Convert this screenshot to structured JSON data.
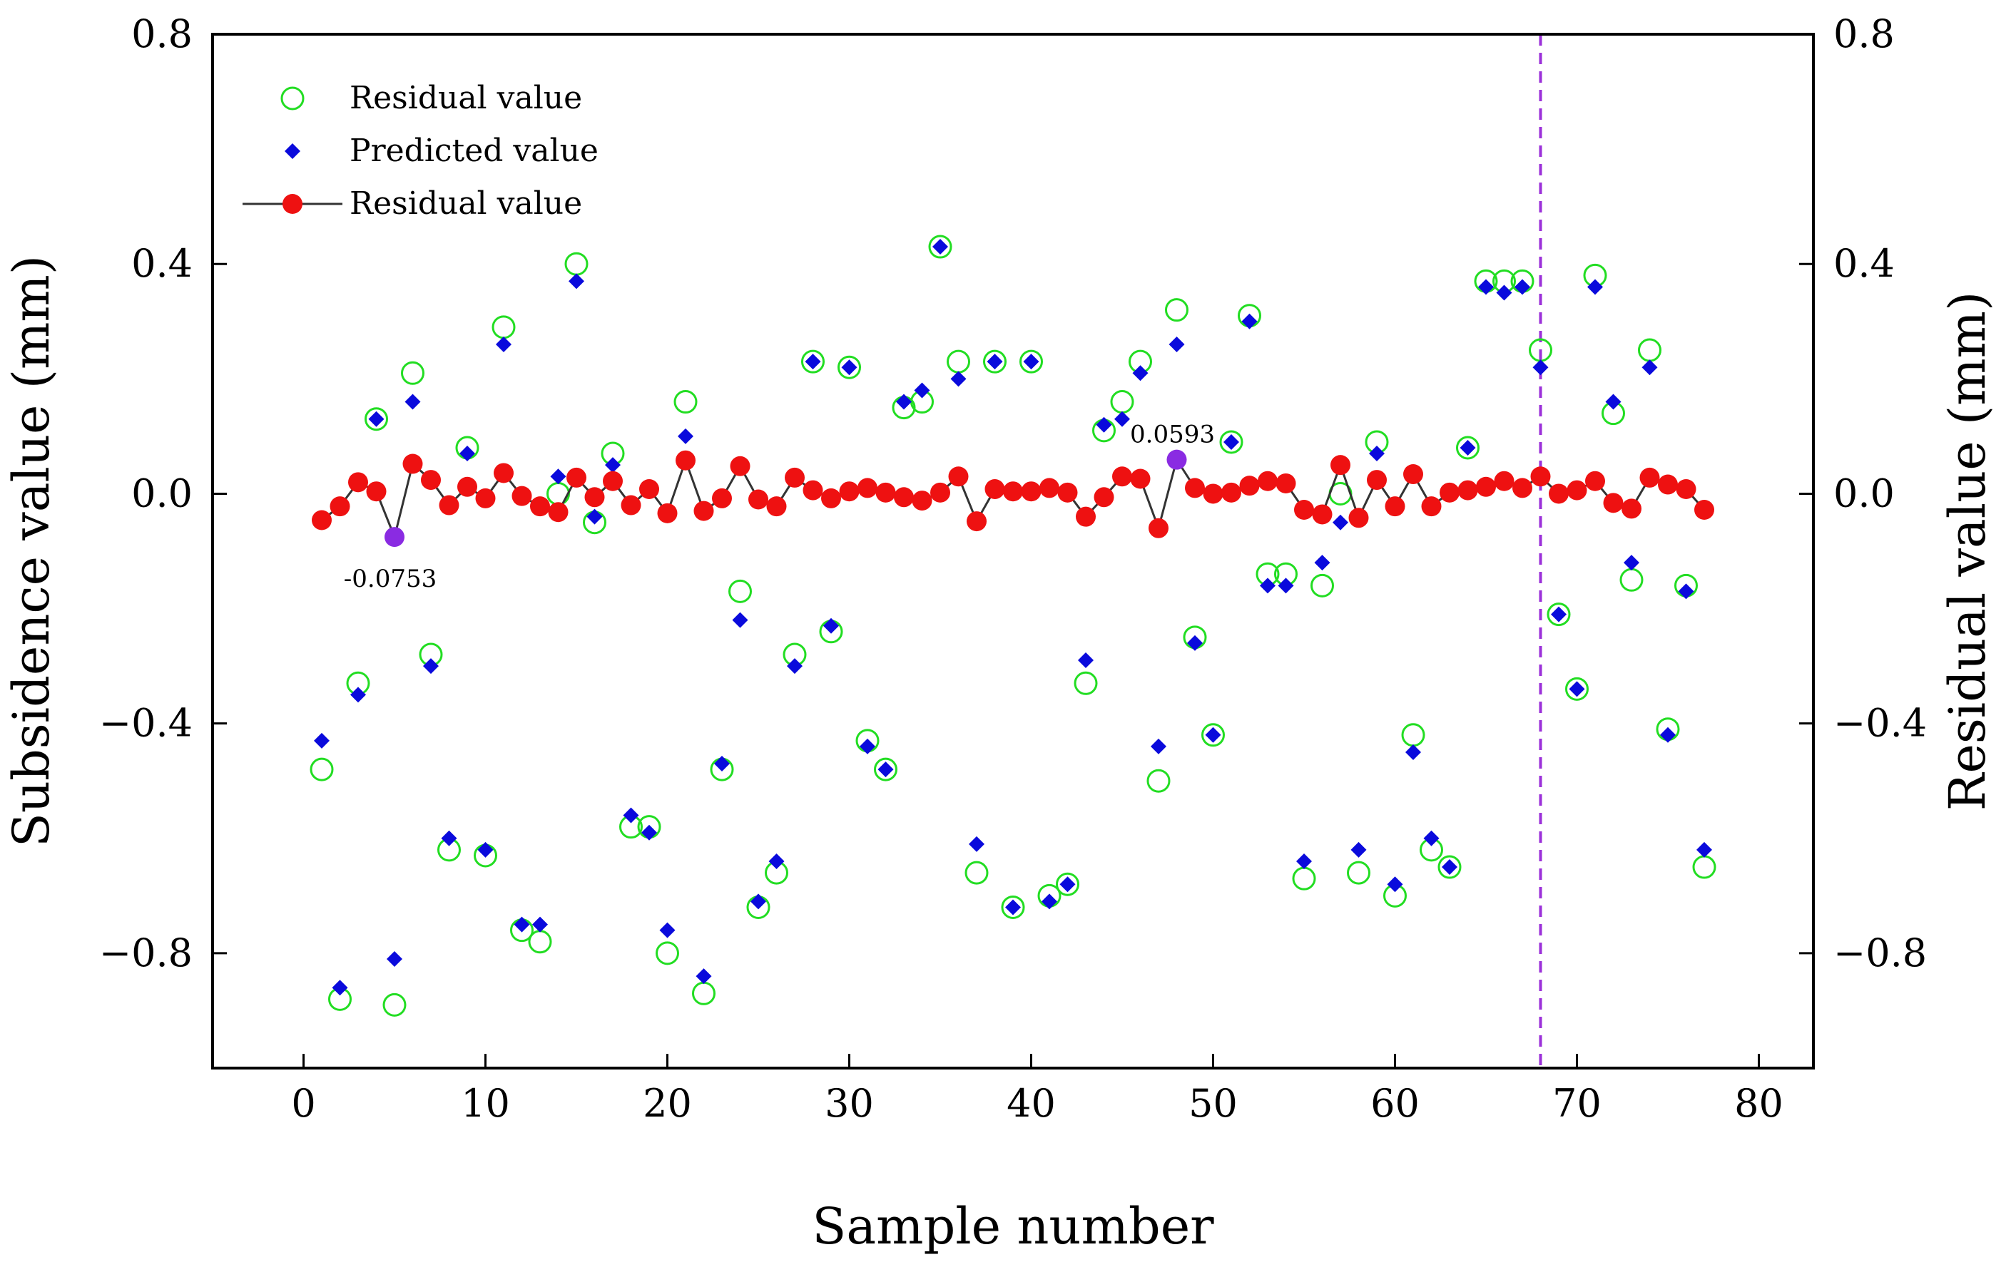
{
  "chart_data": {
    "type": "scatter",
    "xlabel": "Sample number",
    "ylabel": "Subsidence value (mm)",
    "y2label": "Residual value (mm)",
    "xlim": [
      -5,
      83
    ],
    "ylim": [
      -1.0,
      0.8
    ],
    "y2lim": [
      -1.0,
      0.8
    ],
    "xticks": [
      0,
      10,
      20,
      30,
      40,
      50,
      60,
      70,
      80
    ],
    "xtick_labels": [
      "0",
      "10",
      "20",
      "30",
      "40",
      "50",
      "60",
      "70",
      "80"
    ],
    "yticks": [
      0.8,
      0.4,
      0.0,
      -0.4,
      -0.8
    ],
    "ytick_labels": [
      "0.8",
      "0.4",
      "0.0",
      "−0.4",
      "−0.8"
    ],
    "y2ticks": [
      0.8,
      0.4,
      0.0,
      -0.4,
      -0.8
    ],
    "y2tick_labels": [
      "0.8",
      "0.4",
      "0.0",
      "−0.4",
      "−0.8"
    ],
    "legend_position": "top-left",
    "legend": [
      {
        "label": "Residual value",
        "marker": "open-circle",
        "color": "#22dd22"
      },
      {
        "label": "Predicted value",
        "marker": "diamond",
        "color": "#0a0adc"
      },
      {
        "label": "Residual value",
        "marker": "line-dot",
        "color": "#ee1111",
        "line_color": "#333333"
      }
    ],
    "split_line": {
      "x": 68,
      "color": "#9b30d9"
    },
    "highlight_color": "#8a2be2",
    "annotations": [
      {
        "x": 5,
        "y": -0.0753,
        "text": "-0.0753",
        "placement": "below"
      },
      {
        "x": 48,
        "y": 0.0593,
        "text": "0.0593",
        "placement": "above"
      }
    ],
    "series": [
      {
        "name": "Residual value",
        "kind": "open-circle",
        "color": "#22dd22",
        "x": [
          1,
          2,
          3,
          4,
          5,
          6,
          7,
          8,
          9,
          10,
          11,
          12,
          13,
          14,
          15,
          16,
          17,
          18,
          19,
          20,
          21,
          22,
          23,
          24,
          25,
          26,
          27,
          28,
          29,
          30,
          31,
          32,
          33,
          34,
          35,
          36,
          37,
          38,
          39,
          40,
          41,
          42,
          43,
          44,
          45,
          46,
          47,
          48,
          49,
          50,
          51,
          52,
          53,
          54,
          55,
          56,
          57,
          58,
          59,
          60,
          61,
          62,
          63,
          64,
          65,
          66,
          67,
          68,
          69,
          70,
          71,
          72,
          73,
          74,
          75,
          76,
          77
        ],
        "values": [
          -0.48,
          -0.88,
          -0.33,
          0.13,
          -0.89,
          0.21,
          -0.28,
          -0.62,
          0.08,
          -0.63,
          0.29,
          -0.76,
          -0.78,
          0.0,
          0.4,
          -0.05,
          0.07,
          -0.58,
          -0.58,
          -0.8,
          0.16,
          -0.87,
          -0.48,
          -0.17,
          -0.72,
          -0.66,
          -0.28,
          0.23,
          -0.24,
          0.22,
          -0.43,
          -0.48,
          0.15,
          0.16,
          0.43,
          0.23,
          -0.66,
          0.23,
          -0.72,
          0.23,
          -0.7,
          -0.68,
          -0.33,
          0.11,
          0.16,
          0.23,
          -0.5,
          0.32,
          -0.25,
          -0.42,
          0.09,
          0.31,
          -0.14,
          -0.14,
          -0.67,
          -0.16,
          0.0,
          -0.66,
          0.09,
          -0.7,
          -0.42,
          -0.62,
          -0.65,
          0.08,
          0.37,
          0.37,
          0.37,
          0.25,
          -0.21,
          -0.34,
          0.38,
          0.14,
          -0.15,
          0.25,
          -0.41,
          -0.16,
          -0.65
        ]
      },
      {
        "name": "Predicted value",
        "kind": "diamond",
        "color": "#0a0adc",
        "x": [
          1,
          2,
          3,
          4,
          5,
          6,
          7,
          8,
          9,
          10,
          11,
          12,
          13,
          14,
          15,
          16,
          17,
          18,
          19,
          20,
          21,
          22,
          23,
          24,
          25,
          26,
          27,
          28,
          29,
          30,
          31,
          32,
          33,
          34,
          35,
          36,
          37,
          38,
          39,
          40,
          41,
          42,
          43,
          44,
          45,
          46,
          47,
          48,
          49,
          50,
          51,
          52,
          53,
          54,
          55,
          56,
          57,
          58,
          59,
          60,
          61,
          62,
          63,
          64,
          65,
          66,
          67,
          68,
          69,
          70,
          71,
          72,
          73,
          74,
          75,
          76,
          77
        ],
        "values": [
          -0.43,
          -0.86,
          -0.35,
          0.13,
          -0.81,
          0.16,
          -0.3,
          -0.6,
          0.07,
          -0.62,
          0.26,
          -0.75,
          -0.75,
          0.03,
          0.37,
          -0.04,
          0.05,
          -0.56,
          -0.59,
          -0.76,
          0.1,
          -0.84,
          -0.47,
          -0.22,
          -0.71,
          -0.64,
          -0.3,
          0.23,
          -0.23,
          0.22,
          -0.44,
          -0.48,
          0.16,
          0.18,
          0.43,
          0.2,
          -0.61,
          0.23,
          -0.72,
          0.23,
          -0.71,
          -0.68,
          -0.29,
          0.12,
          0.13,
          0.21,
          -0.44,
          0.26,
          -0.26,
          -0.42,
          0.09,
          0.3,
          -0.16,
          -0.16,
          -0.64,
          -0.12,
          -0.05,
          -0.62,
          0.07,
          -0.68,
          -0.45,
          -0.6,
          -0.65,
          0.08,
          0.36,
          0.35,
          0.36,
          0.22,
          -0.21,
          -0.34,
          0.36,
          0.16,
          -0.12,
          0.22,
          -0.42,
          -0.17,
          -0.62
        ]
      },
      {
        "name": "Residual value",
        "kind": "line-dot",
        "axis": "right",
        "color": "#ee1111",
        "line_color": "#333333",
        "x": [
          1,
          2,
          3,
          4,
          5,
          6,
          7,
          8,
          9,
          10,
          11,
          12,
          13,
          14,
          15,
          16,
          17,
          18,
          19,
          20,
          21,
          22,
          23,
          24,
          25,
          26,
          27,
          28,
          29,
          30,
          31,
          32,
          33,
          34,
          35,
          36,
          37,
          38,
          39,
          40,
          41,
          42,
          43,
          44,
          45,
          46,
          47,
          48,
          49,
          50,
          51,
          52,
          53,
          54,
          55,
          56,
          57,
          58,
          59,
          60,
          61,
          62,
          63,
          64,
          65,
          66,
          67,
          68,
          69,
          70,
          71,
          72,
          73,
          74,
          75,
          76,
          77
        ],
        "values": [
          -0.046,
          -0.022,
          0.02,
          0.004,
          -0.0753,
          0.052,
          0.024,
          -0.02,
          0.012,
          -0.008,
          0.036,
          -0.004,
          -0.022,
          -0.032,
          0.028,
          -0.006,
          0.022,
          -0.02,
          0.008,
          -0.034,
          0.058,
          -0.03,
          -0.008,
          0.048,
          -0.01,
          -0.022,
          0.028,
          0.006,
          -0.008,
          0.004,
          0.01,
          0.002,
          -0.006,
          -0.012,
          0.002,
          0.03,
          -0.048,
          0.008,
          0.004,
          0.004,
          0.01,
          0.002,
          -0.04,
          -0.006,
          0.03,
          0.026,
          -0.06,
          0.0593,
          0.01,
          0.0,
          0.002,
          0.014,
          0.022,
          0.018,
          -0.028,
          -0.036,
          0.05,
          -0.042,
          0.024,
          -0.022,
          0.034,
          -0.022,
          0.002,
          0.006,
          0.012,
          0.022,
          0.01,
          0.03,
          0.0,
          0.006,
          0.022,
          -0.016,
          -0.026,
          0.028,
          0.016,
          0.008,
          -0.028
        ]
      }
    ]
  }
}
